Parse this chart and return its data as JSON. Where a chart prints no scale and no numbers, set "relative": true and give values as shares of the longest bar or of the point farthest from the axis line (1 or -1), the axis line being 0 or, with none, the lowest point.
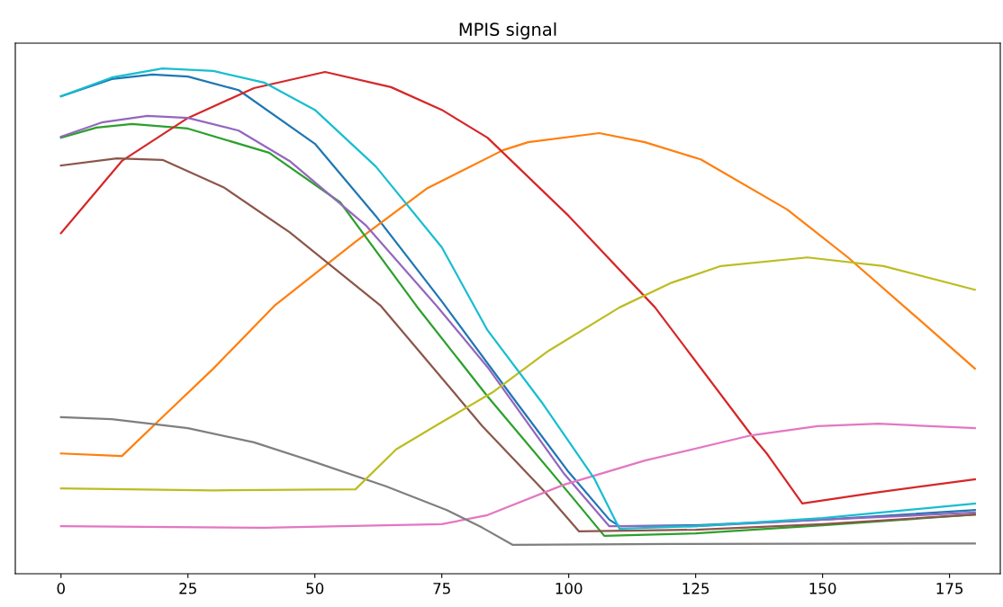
{
  "chart_data": {
    "type": "line",
    "title": "MPIS signal",
    "relative": true,
    "xlim": [
      -9,
      185
    ],
    "xticks": [
      0,
      25,
      50,
      75,
      100,
      125,
      150,
      175
    ],
    "tick_labels": "x",
    "grid": false,
    "series": [
      {
        "color": "#1f77b4",
        "x": [
          0,
          10,
          18,
          25,
          35,
          50,
          62,
          75,
          90,
          100,
          108,
          110,
          125,
          150,
          180
        ],
        "values": [
          0.945,
          0.979,
          0.988,
          0.984,
          0.957,
          0.851,
          0.708,
          0.539,
          0.335,
          0.201,
          0.107,
          0.094,
          0.096,
          0.107,
          0.126
        ]
      },
      {
        "color": "#ff7f0e",
        "x": [
          0,
          12,
          20,
          30,
          42,
          58,
          72,
          87,
          92,
          106,
          115,
          126,
          143,
          155,
          168,
          180
        ],
        "values": [
          0.238,
          0.233,
          0.31,
          0.406,
          0.53,
          0.657,
          0.762,
          0.838,
          0.854,
          0.872,
          0.854,
          0.82,
          0.721,
          0.626,
          0.512,
          0.406
        ]
      },
      {
        "color": "#2ca02c",
        "x": [
          0,
          7,
          14,
          25,
          41,
          55,
          70,
          84,
          100,
          107,
          125,
          150,
          180
        ],
        "values": [
          0.863,
          0.883,
          0.89,
          0.881,
          0.833,
          0.735,
          0.53,
          0.351,
          0.16,
          0.075,
          0.08,
          0.096,
          0.117
        ]
      },
      {
        "color": "#d62728",
        "x": [
          0,
          12,
          25,
          38,
          52,
          65,
          75,
          84,
          100,
          117,
          136,
          139,
          146,
          160,
          180
        ],
        "values": [
          0.674,
          0.817,
          0.902,
          0.961,
          0.993,
          0.963,
          0.918,
          0.863,
          0.708,
          0.527,
          0.274,
          0.238,
          0.139,
          0.16,
          0.187
        ]
      },
      {
        "color": "#9467bd",
        "x": [
          0,
          8,
          17,
          25,
          35,
          45,
          60,
          74,
          84,
          99,
          108,
          125,
          150,
          180
        ],
        "values": [
          0.865,
          0.893,
          0.906,
          0.902,
          0.877,
          0.817,
          0.69,
          0.53,
          0.409,
          0.199,
          0.094,
          0.094,
          0.107,
          0.121
        ]
      },
      {
        "color": "#8c564b",
        "x": [
          0,
          11,
          20,
          32,
          45,
          63,
          83,
          95,
          102,
          125,
          150,
          180
        ],
        "values": [
          0.808,
          0.822,
          0.819,
          0.765,
          0.676,
          0.53,
          0.292,
          0.165,
          0.084,
          0.087,
          0.098,
          0.117
        ]
      },
      {
        "color": "#e377c2",
        "x": [
          0,
          40,
          75,
          84,
          99,
          115,
          136,
          149,
          161,
          180
        ],
        "values": [
          0.094,
          0.091,
          0.098,
          0.116,
          0.176,
          0.224,
          0.274,
          0.292,
          0.297,
          0.288
        ]
      },
      {
        "color": "#7f7f7f",
        "x": [
          0,
          10,
          25,
          38,
          50,
          64,
          76,
          83,
          89,
          120,
          180
        ],
        "values": [
          0.31,
          0.306,
          0.288,
          0.26,
          0.221,
          0.173,
          0.126,
          0.091,
          0.057,
          0.059,
          0.06
        ]
      },
      {
        "color": "#bcbd22",
        "x": [
          0,
          30,
          58,
          66,
          74,
          85,
          96,
          110,
          120,
          130,
          147,
          162,
          180
        ],
        "values": [
          0.169,
          0.165,
          0.167,
          0.246,
          0.294,
          0.359,
          0.441,
          0.527,
          0.575,
          0.609,
          0.626,
          0.609,
          0.562
        ]
      },
      {
        "color": "#17becf",
        "x": [
          0,
          10,
          20,
          30,
          40,
          50,
          62,
          75,
          84,
          95,
          105,
          110,
          125,
          150,
          180
        ],
        "values": [
          0.945,
          0.982,
          1.0,
          0.995,
          0.972,
          0.918,
          0.806,
          0.646,
          0.482,
          0.335,
          0.189,
          0.089,
          0.094,
          0.11,
          0.139
        ]
      }
    ]
  }
}
